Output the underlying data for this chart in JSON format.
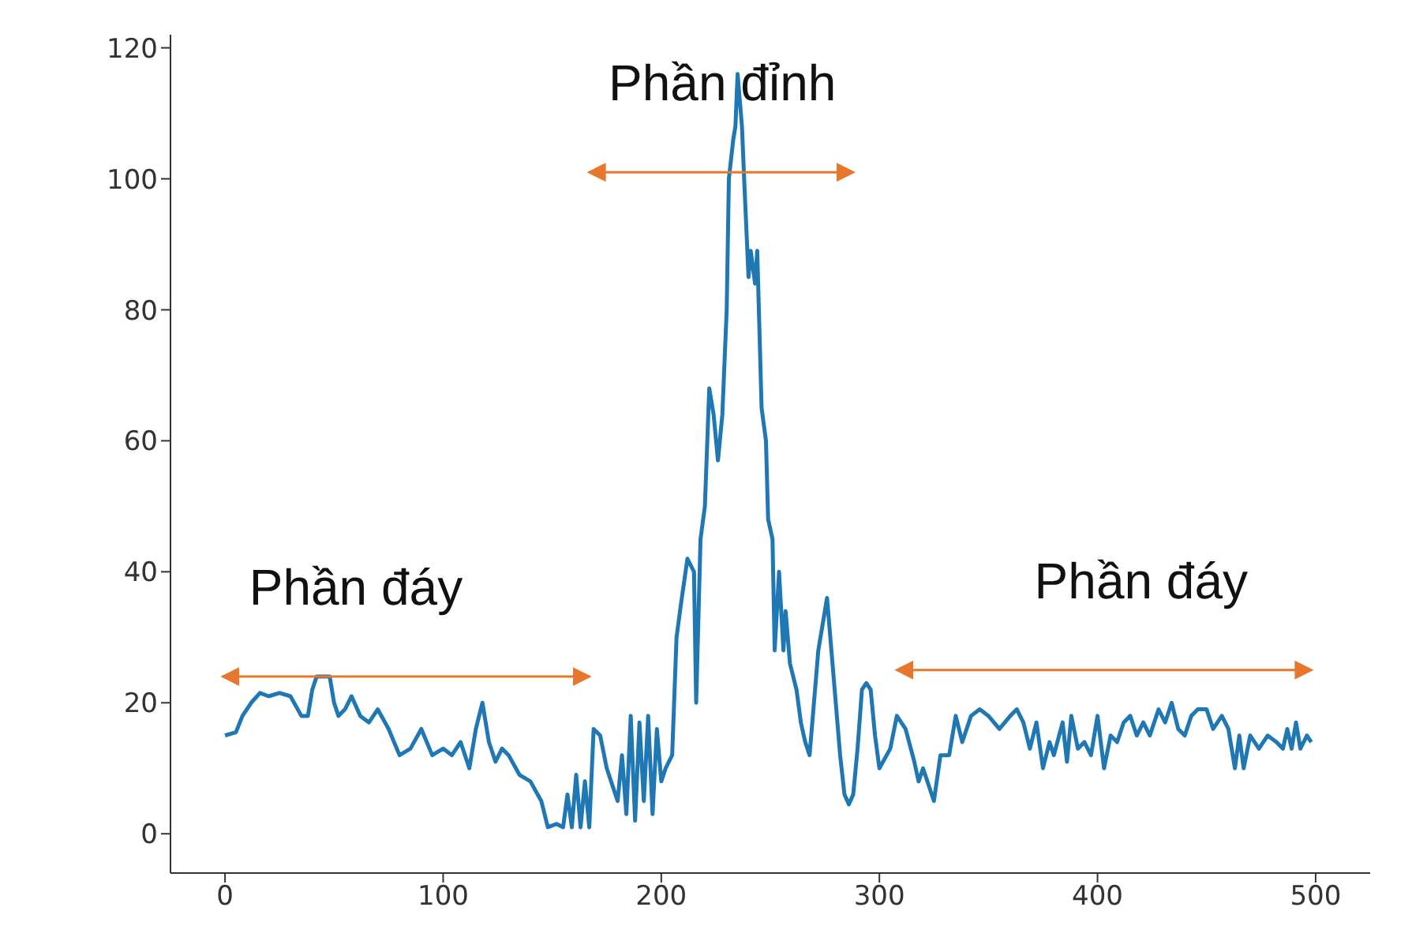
{
  "chart_data": {
    "type": "line",
    "x": [
      0,
      5,
      8,
      12,
      16,
      20,
      25,
      30,
      35,
      38,
      40,
      42,
      48,
      50,
      52,
      55,
      58,
      62,
      66,
      70,
      75,
      80,
      85,
      90,
      95,
      100,
      104,
      108,
      112,
      115,
      118,
      121,
      124,
      127,
      130,
      135,
      140,
      145,
      148,
      152,
      155,
      157,
      159,
      161,
      163,
      165,
      167,
      169,
      172,
      175,
      178,
      180,
      182,
      184,
      186,
      188,
      190,
      192,
      194,
      196,
      198,
      200,
      202,
      205,
      207,
      209,
      212,
      215,
      216,
      218,
      220,
      222,
      224,
      226,
      228,
      230,
      231,
      233,
      234,
      235,
      237,
      238,
      240,
      241,
      243,
      244,
      246,
      248,
      249,
      251,
      252,
      254,
      256,
      257,
      259,
      262,
      264,
      266,
      268,
      270,
      272,
      274,
      276,
      278,
      280,
      282,
      284,
      286,
      288,
      290,
      292,
      294,
      296,
      298,
      300,
      305,
      308,
      312,
      316,
      318,
      320,
      325,
      328,
      332,
      335,
      338,
      342,
      346,
      350,
      355,
      360,
      363,
      366,
      369,
      372,
      375,
      378,
      380,
      384,
      386,
      388,
      391,
      394,
      397,
      400,
      403,
      406,
      409,
      412,
      415,
      418,
      421,
      424,
      428,
      431,
      434,
      437,
      440,
      443,
      446,
      450,
      453,
      457,
      460,
      463,
      465,
      467,
      470,
      474,
      478,
      482,
      485,
      487,
      489,
      491,
      493,
      496,
      498
    ],
    "series": [
      {
        "color": "#1f77b4",
        "values": [
          15,
          15.5,
          18,
          20,
          21.5,
          21,
          21.5,
          21,
          18,
          18,
          22,
          24,
          24,
          20,
          18,
          19,
          21,
          18,
          17,
          19,
          16,
          12,
          13,
          16,
          12,
          13,
          12,
          14,
          10,
          16,
          20,
          14,
          11,
          13,
          12,
          9,
          8,
          5,
          1,
          1.5,
          1,
          6,
          1,
          9,
          1,
          8,
          1,
          16,
          15,
          10,
          7,
          5,
          12,
          3,
          18,
          2,
          17,
          5,
          18,
          3,
          16,
          8,
          10,
          12,
          30,
          35,
          42,
          40,
          20,
          45,
          50,
          68,
          64,
          57,
          64,
          80,
          100,
          106,
          108,
          116,
          108,
          100,
          85,
          89,
          84,
          89,
          65,
          60,
          48,
          45,
          28,
          40,
          28,
          34,
          26,
          22,
          17,
          14,
          12,
          20,
          28,
          32,
          36,
          28,
          20,
          12,
          6,
          4.5,
          6,
          13,
          22,
          23,
          22,
          15,
          10,
          13,
          18,
          16,
          11,
          8,
          10,
          5,
          12,
          12,
          18,
          14,
          18,
          19,
          18,
          16,
          18,
          19,
          17,
          13,
          17,
          10,
          14,
          12,
          17,
          11,
          18,
          13,
          14,
          12,
          18,
          10,
          15,
          14,
          17,
          18,
          15,
          17,
          15,
          19,
          17,
          20,
          16,
          15,
          18,
          19,
          19,
          16,
          18,
          16,
          10,
          15,
          10,
          15,
          13,
          15,
          14,
          13,
          16,
          13,
          17,
          13,
          15,
          14
        ]
      }
    ],
    "xlim": [
      -25,
      525
    ],
    "xticks": [
      0,
      100,
      200,
      300,
      400,
      500
    ],
    "ylim": [
      -6,
      122
    ],
    "yticks": [
      0,
      20,
      40,
      60,
      80,
      100,
      120
    ],
    "grid": false,
    "legend": false,
    "marker": "none",
    "line_style": "solid",
    "annotations": [
      "Phần đáy",
      "Phần đỉnh",
      "Phần đáy"
    ]
  }
}
